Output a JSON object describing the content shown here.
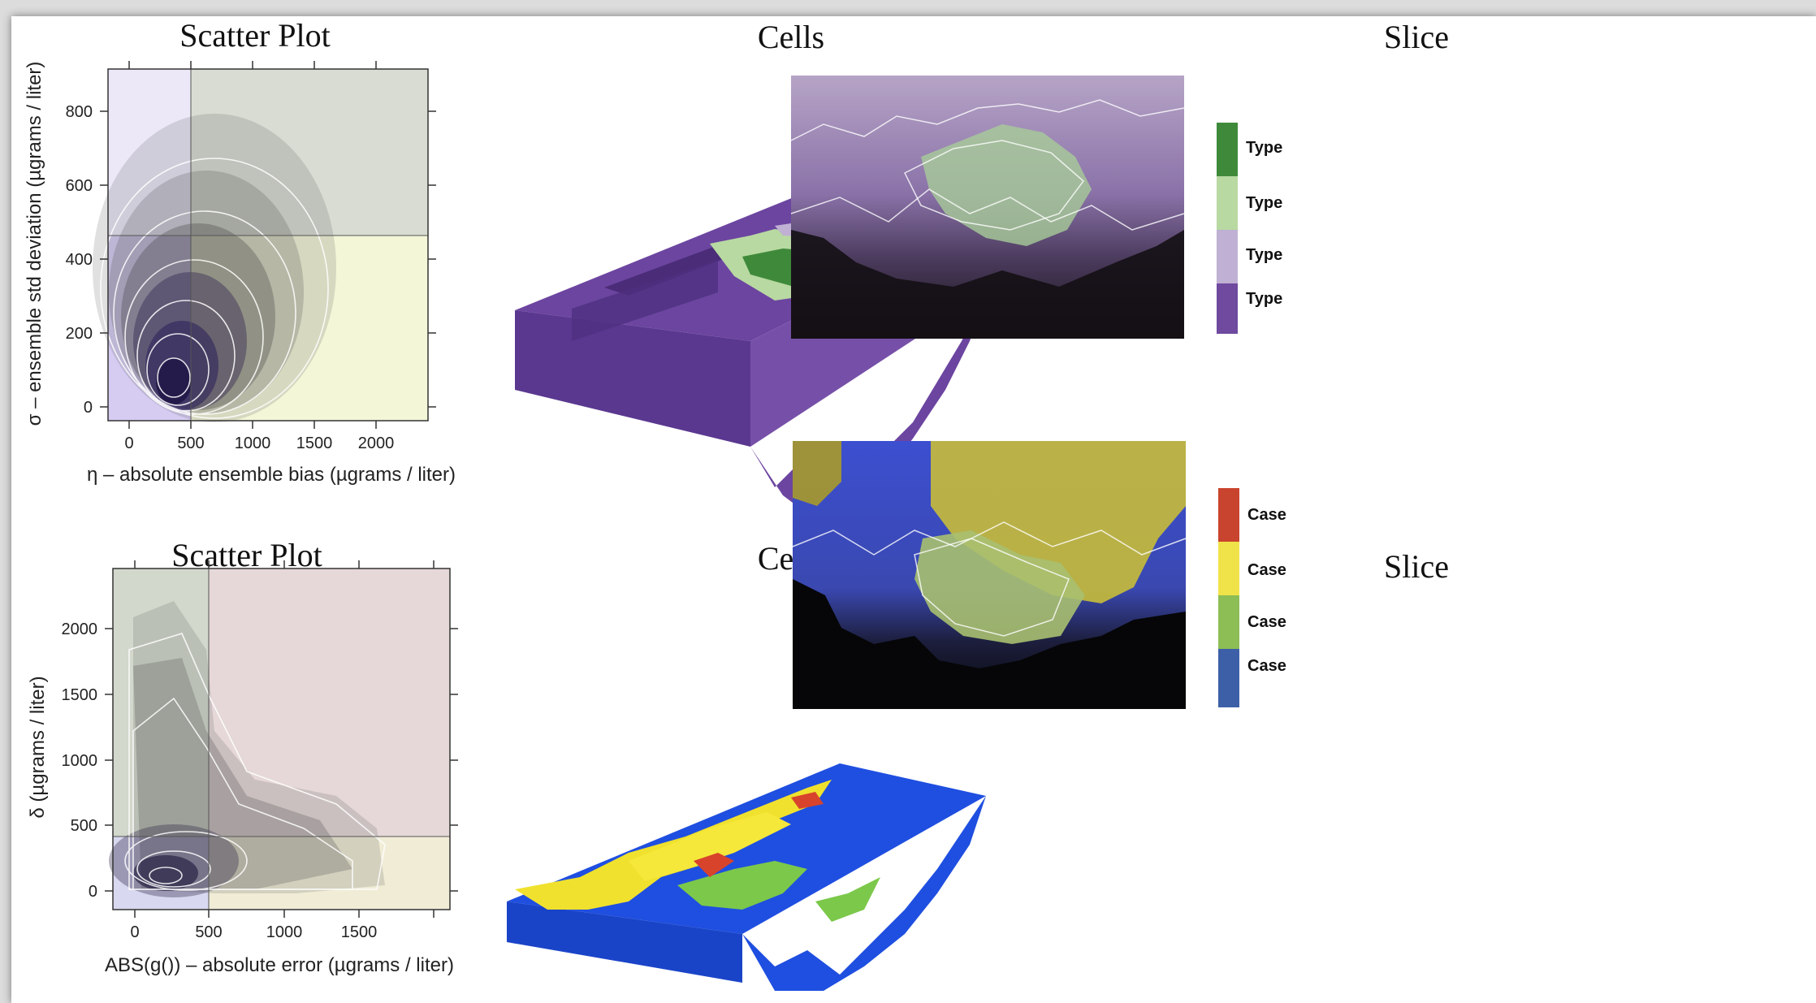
{
  "row1": {
    "scatter": {
      "title": "Scatter Plot",
      "xlabel": "η – absolute ensemble bias (µgrams / liter)",
      "ylabel": "σ – ensemble std deviation (µgrams / liter)",
      "xticks": [
        "0",
        "500",
        "1000",
        "1500",
        "2000"
      ],
      "yticks": [
        "0",
        "200",
        "400",
        "600",
        "800"
      ],
      "thresholds": {
        "x": 500,
        "y": 450
      },
      "quadrant_colors": {
        "low_low": "#d6ccf2",
        "low_high": "#ece8f8",
        "high_high": "#d8dcd2",
        "high_low": "#f4f6d8"
      }
    },
    "cells": {
      "title": "Cells"
    },
    "slice": {
      "title": "Slice"
    },
    "legend": {
      "items": [
        {
          "label": "Type",
          "color": "#3f8a3a"
        },
        {
          "label": "Type",
          "color": "#b8d9a2"
        },
        {
          "label": "Type",
          "color": "#c0b0d4"
        },
        {
          "label": "Type",
          "color": "#6f4a9e"
        }
      ]
    }
  },
  "row2": {
    "scatter": {
      "title": "Scatter Plot",
      "xlabel": "ABS(g()) – absolute error (µgrams / liter)",
      "ylabel": "δ (µgrams / liter)",
      "xticks": [
        "0",
        "500",
        "1000",
        "1500"
      ],
      "yticks": [
        "0",
        "500",
        "1000",
        "1500",
        "2000"
      ],
      "thresholds": {
        "x": 500,
        "y": 500
      },
      "quadrant_colors": {
        "low_low": "#d8d8f0",
        "low_high": "#d2d8cc",
        "high_high": "#e6d8d8",
        "high_low": "#f0ecd6"
      }
    },
    "cells": {
      "title": "Cells"
    },
    "slice": {
      "title": "Slice"
    },
    "legend": {
      "items": [
        {
          "label": "Case",
          "color": "#c9442e"
        },
        {
          "label": "Case",
          "color": "#f0e34a"
        },
        {
          "label": "Case",
          "color": "#8dbd55"
        },
        {
          "label": "Case",
          "color": "#3d5fa8"
        }
      ]
    }
  }
}
